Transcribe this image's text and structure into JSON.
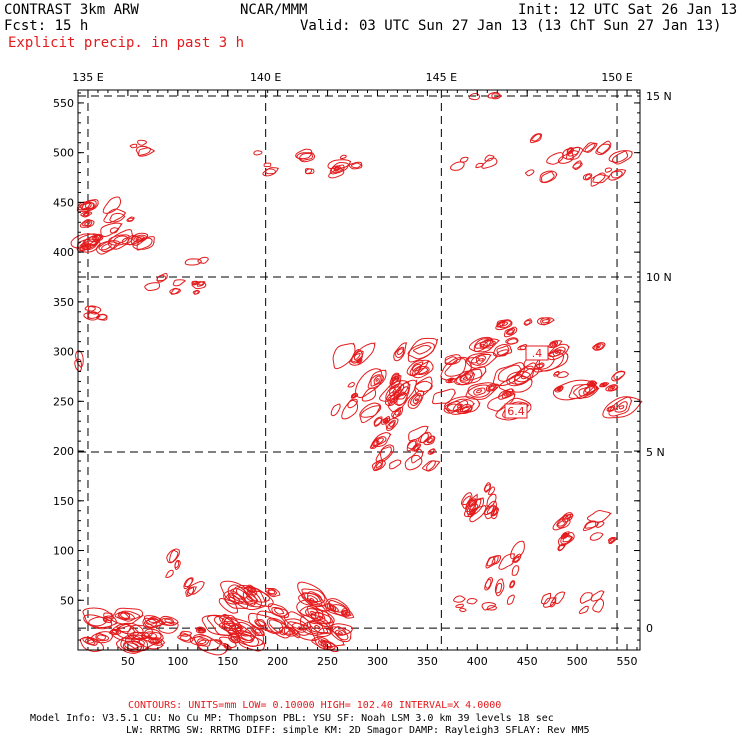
{
  "header": {
    "model": "CONTRAST  3km ARW",
    "center": "NCAR/MMM",
    "init": "Init: 12 UTC Sat 26 Jan 13",
    "fcst": "Fcst:    15 h",
    "valid": "Valid: 03 UTC Sun 27 Jan 13 (13 ChT Sun 27 Jan 13)",
    "field": "Explicit precip. in past 3 h"
  },
  "map": {
    "x_ticks": [
      "50",
      "100",
      "150",
      "200",
      "250",
      "300",
      "350",
      "400",
      "450",
      "500",
      "550"
    ],
    "y_ticks": [
      "50",
      "100",
      "150",
      "200",
      "250",
      "300",
      "350",
      "400",
      "450",
      "500",
      "550"
    ],
    "lon_labels": [
      "135 E",
      "140 E",
      "145 E",
      "150 E"
    ],
    "lat_labels": [
      "15 N",
      "10 N",
      "5 N",
      "0"
    ],
    "contour_color": "#e41a1c",
    "highs": [
      "6.4",
      ".4"
    ]
  },
  "footer": {
    "contours": "CONTOURS:  UNITS=mm  LOW= 0.10000      HIGH=  102.40      INTERVAL=X  4.0000",
    "model_info_1": "Model Info: V3.5.1    CU: No Cu    MP: Thompson    PBL: YSU      SF: Noah LSM     3.0 km   39 levels   18 sec",
    "model_info_2": "LW: RRTMG   SW: RRTMG  DIFF: simple KM: 2D Smagor DAMP: Rayleigh3  SFLAY: Rev MM5"
  }
}
